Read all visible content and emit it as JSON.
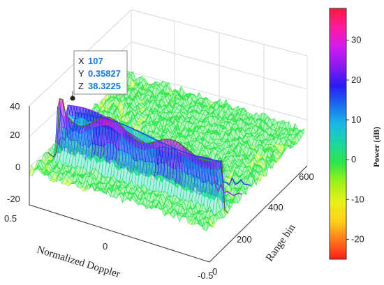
{
  "chart_data": {
    "type": "surface3d",
    "xlabel": "Normalized Doppler",
    "ylabel": "Range bin",
    "zlabel": "",
    "x_ticks": [
      "0.5",
      "0",
      "-0.5"
    ],
    "y_ticks": [
      "0",
      "200",
      "400",
      "600"
    ],
    "z_ticks": [
      "40",
      "20",
      "0",
      "-20"
    ],
    "xlim": [
      0.5,
      -0.5
    ],
    "ylim": [
      0,
      600
    ],
    "zlim": [
      -25,
      40
    ],
    "colorbar": {
      "label": "Power (dB)",
      "ticks": [
        "30",
        "20",
        "10",
        "0",
        "-10",
        "-20"
      ],
      "range": [
        -25,
        38
      ],
      "colormap": [
        "#ff1a1a",
        "#ff7a1a",
        "#ffd21a",
        "#e8f01a",
        "#9ef01a",
        "#2ee64a",
        "#1ad7a0",
        "#1ab8e6",
        "#1a6cf0",
        "#2a1af0",
        "#8a1af0",
        "#d21af0",
        "#ff1aa0",
        "#ff1a3c"
      ]
    },
    "datatip": {
      "x_label": "X",
      "x_value": "107",
      "y_label": "Y",
      "y_value": "0.35827",
      "z_label": "Z",
      "z_value": "38.3225"
    },
    "grid": true,
    "ridges": [
      {
        "range_bin": 107,
        "peak_db": 38.3,
        "color": "#5a6b1e"
      },
      {
        "range_bin": 200,
        "peak_db": 22,
        "color": "#8a2ae6"
      },
      {
        "range_bin": 250,
        "peak_db": 12,
        "color": "#2a3ae6"
      }
    ]
  }
}
